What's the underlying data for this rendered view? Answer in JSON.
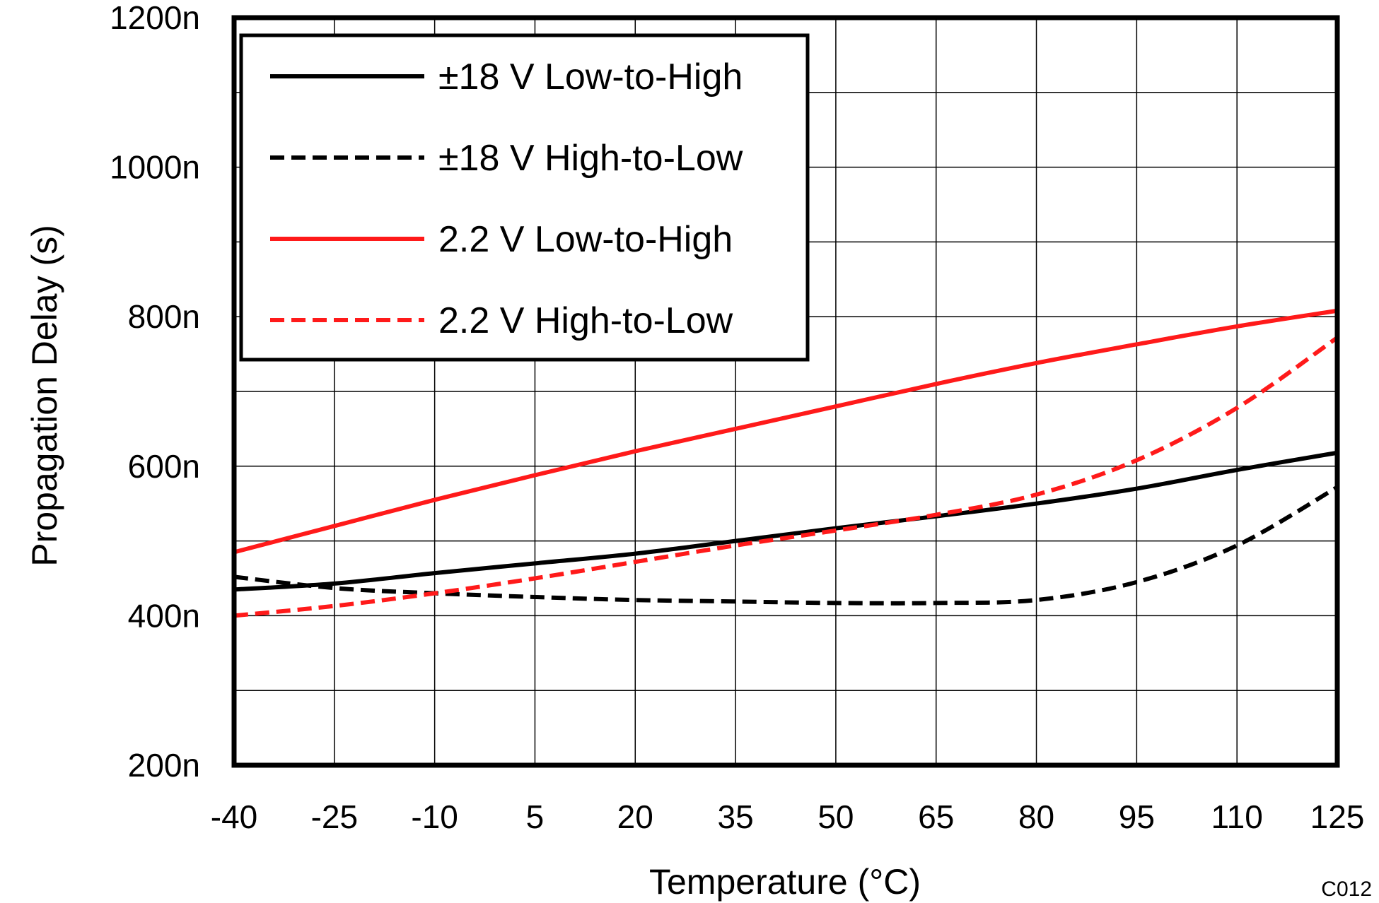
{
  "chart_data": {
    "type": "line",
    "xlabel": "Temperature (°C)",
    "ylabel": "Propagation Delay (s)",
    "figure_code": "C012",
    "xlim": [
      -40,
      125
    ],
    "ylim": [
      200,
      1200
    ],
    "xticks": [
      "-40",
      "-25",
      "-10",
      "5",
      "20",
      "35",
      "50",
      "65",
      "80",
      "95",
      "110",
      "125"
    ],
    "xtick_values": [
      -40,
      -25,
      -10,
      5,
      20,
      35,
      50,
      65,
      80,
      95,
      110,
      125
    ],
    "yticks": [
      "200n",
      "400n",
      "600n",
      "800n",
      "1000n",
      "1200n"
    ],
    "ytick_values": [
      200,
      400,
      600,
      800,
      1000,
      1200
    ],
    "grid": true,
    "legend_position": "top-left",
    "series": [
      {
        "name": "±18 V Low-to-High",
        "color": "#000000",
        "dashed": false,
        "x": [
          -40,
          -25,
          -10,
          5,
          20,
          35,
          50,
          65,
          80,
          95,
          110,
          125
        ],
        "y": [
          435,
          443,
          457,
          470,
          483,
          500,
          517,
          533,
          550,
          570,
          595,
          618
        ]
      },
      {
        "name": "±18 V High-to-Low",
        "color": "#000000",
        "dashed": true,
        "x": [
          -40,
          -25,
          -10,
          5,
          20,
          35,
          50,
          65,
          80,
          95,
          110,
          125
        ],
        "y": [
          452,
          437,
          430,
          425,
          421,
          419,
          417,
          417,
          421,
          445,
          494,
          572
        ]
      },
      {
        "name": "2.2 V Low-to-High",
        "color": "#ff1a1a",
        "dashed": false,
        "x": [
          -40,
          -25,
          -10,
          5,
          20,
          35,
          50,
          65,
          80,
          95,
          110,
          125
        ],
        "y": [
          485,
          520,
          555,
          588,
          620,
          650,
          680,
          710,
          738,
          763,
          787,
          808
        ]
      },
      {
        "name": "2.2 V High-to-Low",
        "color": "#ff1a1a",
        "dashed": true,
        "x": [
          -40,
          -25,
          -10,
          5,
          20,
          35,
          50,
          65,
          80,
          95,
          110,
          125
        ],
        "y": [
          400,
          413,
          430,
          450,
          472,
          494,
          514,
          535,
          562,
          608,
          678,
          772
        ]
      }
    ]
  }
}
